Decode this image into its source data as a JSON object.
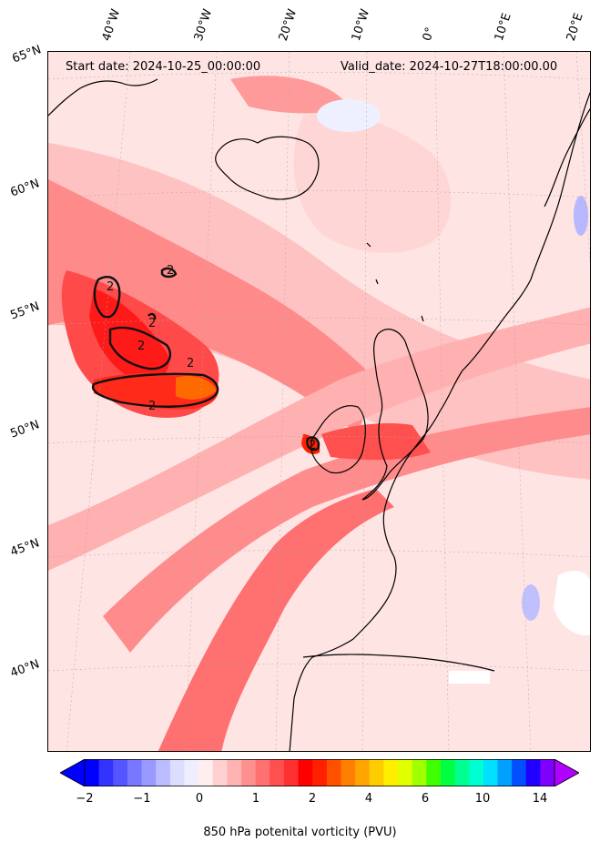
{
  "header": {
    "start_date": "Start date: 2024-10-25_00:00:00",
    "valid_date": "Valid_date: 2024-10-27T18:00:00.00"
  },
  "axes": {
    "lon_labels": [
      "40°W",
      "30°W",
      "20°W",
      "10°W",
      "0°",
      "10°E",
      "20°E"
    ],
    "lat_labels": [
      "65°N",
      "60°N",
      "55°N",
      "50°N",
      "45°N",
      "40°N"
    ]
  },
  "contour_labels": [
    "2",
    "2",
    "2",
    "2",
    "2",
    "2",
    "2"
  ],
  "colorbar": {
    "label": "850 hPa potenital vorticity (PVU)",
    "ticks": [
      "−2",
      "−1",
      "0",
      "1",
      "2",
      "4",
      "6",
      "10",
      "14"
    ],
    "colors": [
      "#0000ff",
      "#3333ff",
      "#5555ff",
      "#7777ff",
      "#9999ff",
      "#bbbbff",
      "#ddddff",
      "#eeeeff",
      "#ffeeee",
      "#ffd0d0",
      "#ffb3b3",
      "#ff9090",
      "#ff7070",
      "#ff5050",
      "#ff3030",
      "#ff0000",
      "#ff2000",
      "#ff5000",
      "#ff8000",
      "#ffa500",
      "#ffcc00",
      "#ffee00",
      "#e0ff00",
      "#a0ff00",
      "#40ff00",
      "#00ff40",
      "#00ff90",
      "#00ffd0",
      "#00e0ff",
      "#00a0ff",
      "#0050ff",
      "#2000ff",
      "#8000ff"
    ],
    "extend_min_color": "#0000ff",
    "extend_max_color": "#b000ff"
  },
  "colors": {
    "background_light": "#ffe6e6",
    "band_pink": "#ffb3b3",
    "band_red": "#ff6060",
    "band_strong": "#ff2020",
    "negative_blue": "#c8c8ff"
  }
}
